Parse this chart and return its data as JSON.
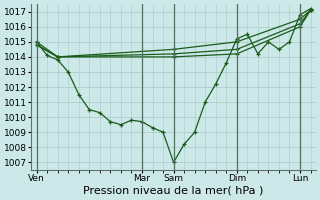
{
  "title": "",
  "xlabel": "Pression niveau de la mer( hPa )",
  "ylabel": "",
  "bg_color": "#cce8e8",
  "line_color_dark": "#1a5c1a",
  "ylim": [
    1006.5,
    1017.5
  ],
  "yticks": [
    1007,
    1008,
    1009,
    1010,
    1011,
    1012,
    1013,
    1014,
    1015,
    1016,
    1017
  ],
  "xtick_labels": [
    "Ven",
    "Mar",
    "Sam",
    "Dim",
    "Lun"
  ],
  "xtick_positions": [
    0,
    10,
    13,
    19,
    25
  ],
  "vline_positions": [
    0,
    10,
    13,
    19,
    25
  ],
  "n_points": 27,
  "line1_x": [
    0,
    1,
    2,
    3,
    4,
    5,
    6,
    7,
    8,
    9,
    10,
    11,
    12,
    13,
    14,
    15,
    16,
    17,
    18,
    19,
    20,
    21,
    22,
    23,
    24,
    25,
    26
  ],
  "line1_y": [
    1015.0,
    1014.1,
    1013.8,
    1013.0,
    1011.5,
    1010.5,
    1010.3,
    1009.7,
    1009.5,
    1009.8,
    1009.7,
    1009.3,
    1009.0,
    1007.0,
    1008.2,
    1009.0,
    1011.0,
    1012.2,
    1013.6,
    1015.2,
    1015.5,
    1014.2,
    1015.0,
    1014.5,
    1015.0,
    1016.8,
    1017.2
  ],
  "line2_x": [
    0,
    2,
    13,
    19,
    25,
    26
  ],
  "line2_y": [
    1014.8,
    1014.0,
    1014.0,
    1014.2,
    1016.0,
    1017.1
  ],
  "line3_x": [
    0,
    2,
    13,
    19,
    25,
    26
  ],
  "line3_y": [
    1015.0,
    1014.0,
    1014.5,
    1015.0,
    1016.5,
    1017.1
  ],
  "line4_x": [
    0,
    2,
    13,
    19,
    25,
    26
  ],
  "line4_y": [
    1014.8,
    1014.0,
    1014.2,
    1014.5,
    1016.2,
    1017.1
  ],
  "xlabel_fontsize": 8,
  "tick_fontsize": 6.5,
  "xlim": [
    -0.5,
    26.5
  ]
}
